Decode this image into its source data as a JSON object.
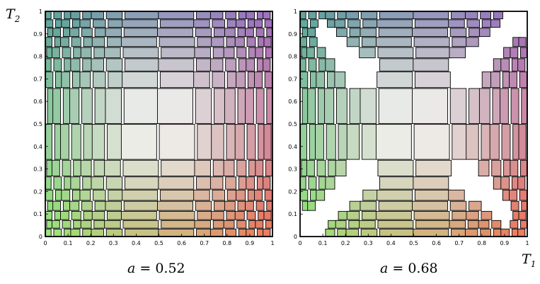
{
  "y_axis_title": "T",
  "y_axis_subscript": "2",
  "x_axis_title": "T",
  "x_axis_subscript": "1",
  "tick_labels": [
    "0",
    "0.1",
    "0.2",
    "0.3",
    "0.4",
    "0.5",
    "0.6",
    "0.7",
    "0.8",
    "0.9",
    "1"
  ],
  "panels": [
    {
      "name": "left",
      "caption_var": "a",
      "caption_eq": " = ",
      "caption_value": "0.52"
    },
    {
      "name": "right",
      "caption_var": "a",
      "caption_eq": " = ",
      "caption_value": "0.68"
    }
  ],
  "colors": {
    "bottom_left": "#9be87a",
    "top_left": "#5fa59e",
    "top_right": "#a072c4",
    "bottom_right": "#f07a5f",
    "center": "#ffffff",
    "frame": "#000000"
  }
}
